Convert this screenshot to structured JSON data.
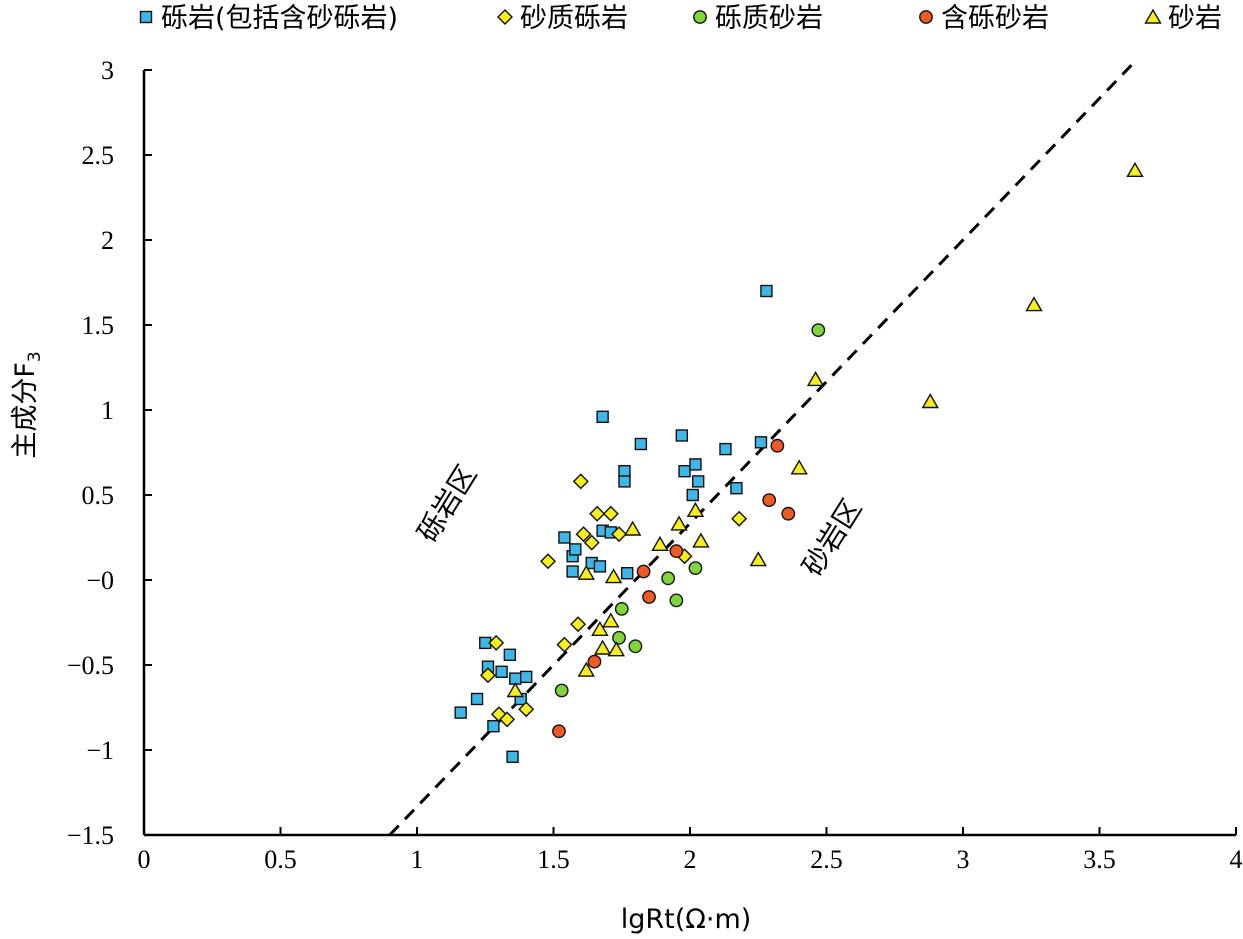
{
  "chart_data": {
    "type": "scatter",
    "xlabel": "lgRt(Ω·m)",
    "ylabel": "主成分F",
    "ylabel_sub": "3",
    "xlim": [
      0,
      4
    ],
    "ylim": [
      -1.5,
      3
    ],
    "xticks": [
      0,
      0.5,
      1,
      1.5,
      2,
      2.5,
      3,
      3.5,
      4
    ],
    "xtick_labels": [
      "0",
      "0.5",
      "1",
      "1.5",
      "2",
      "2.5",
      "3",
      "3.5",
      "4"
    ],
    "yticks": [
      -1.5,
      -1,
      -0.5,
      0,
      0.5,
      1,
      1.5,
      2,
      2.5,
      3
    ],
    "ytick_labels": [
      "−1.5",
      "−1",
      "−0.5",
      "−0",
      "0.5",
      "1",
      "1.5",
      "2",
      "2.5",
      "3"
    ],
    "grid": false,
    "legend_position": "top",
    "divider_line": {
      "x": [
        0.9,
        3.63
      ],
      "y": [
        -1.5,
        3.05
      ],
      "style": "dashed"
    },
    "zone_labels": [
      {
        "text": "砾岩区",
        "x": 1.14,
        "y": 0.42
      },
      {
        "text": "砂岩区",
        "x": 2.55,
        "y": 0.22
      }
    ],
    "series": [
      {
        "name": "砾岩(包括含砂砾岩)",
        "marker": "square",
        "color": "#3fb6e8",
        "points": [
          [
            1.16,
            -0.78
          ],
          [
            1.22,
            -0.7
          ],
          [
            1.25,
            -0.37
          ],
          [
            1.26,
            -0.51
          ],
          [
            1.28,
            -0.86
          ],
          [
            1.31,
            -0.54
          ],
          [
            1.34,
            -0.44
          ],
          [
            1.35,
            -1.04
          ],
          [
            1.36,
            -0.58
          ],
          [
            1.38,
            -0.7
          ],
          [
            1.4,
            -0.57
          ],
          [
            1.54,
            0.25
          ],
          [
            1.57,
            0.14
          ],
          [
            1.57,
            0.05
          ],
          [
            1.58,
            0.18
          ],
          [
            1.64,
            0.1
          ],
          [
            1.67,
            0.08
          ],
          [
            1.68,
            0.96
          ],
          [
            1.68,
            0.29
          ],
          [
            1.71,
            0.28
          ],
          [
            1.76,
            0.64
          ],
          [
            1.76,
            0.58
          ],
          [
            1.77,
            0.04
          ],
          [
            1.82,
            0.8
          ],
          [
            1.97,
            0.85
          ],
          [
            1.98,
            0.64
          ],
          [
            2.01,
            0.5
          ],
          [
            2.02,
            0.68
          ],
          [
            2.03,
            0.58
          ],
          [
            2.13,
            0.77
          ],
          [
            2.17,
            0.54
          ],
          [
            2.26,
            0.81
          ],
          [
            2.28,
            1.7
          ]
        ]
      },
      {
        "name": "砂质砾岩",
        "marker": "diamond",
        "color": "#f6ee1d",
        "points": [
          [
            1.26,
            -0.56
          ],
          [
            1.29,
            -0.37
          ],
          [
            1.3,
            -0.79
          ],
          [
            1.33,
            -0.82
          ],
          [
            1.4,
            -0.76
          ],
          [
            1.48,
            0.11
          ],
          [
            1.54,
            -0.38
          ],
          [
            1.59,
            -0.26
          ],
          [
            1.6,
            0.58
          ],
          [
            1.61,
            0.27
          ],
          [
            1.64,
            0.22
          ],
          [
            1.66,
            0.39
          ],
          [
            1.71,
            0.39
          ],
          [
            1.74,
            0.27
          ],
          [
            1.98,
            0.14
          ],
          [
            2.18,
            0.36
          ]
        ]
      },
      {
        "name": "砾质砂岩",
        "marker": "circle",
        "color": "#7fd63a",
        "points": [
          [
            1.53,
            -0.65
          ],
          [
            1.74,
            -0.34
          ],
          [
            1.75,
            -0.17
          ],
          [
            1.8,
            -0.39
          ],
          [
            1.92,
            0.01
          ],
          [
            1.95,
            -0.12
          ],
          [
            2.02,
            0.07
          ],
          [
            2.47,
            1.47
          ]
        ]
      },
      {
        "name": "含砾砂岩",
        "marker": "circle",
        "color": "#ee5a24",
        "points": [
          [
            1.52,
            -0.89
          ],
          [
            1.65,
            -0.48
          ],
          [
            1.83,
            0.05
          ],
          [
            1.85,
            -0.1
          ],
          [
            1.95,
            0.17
          ],
          [
            2.29,
            0.47
          ],
          [
            2.32,
            0.79
          ],
          [
            2.36,
            0.39
          ]
        ]
      },
      {
        "name": "砂岩",
        "marker": "triangle",
        "color": "#f6ee1d",
        "points": [
          [
            1.36,
            -0.65
          ],
          [
            1.62,
            0.04
          ],
          [
            1.62,
            -0.53
          ],
          [
            1.67,
            -0.29
          ],
          [
            1.68,
            -0.4
          ],
          [
            1.71,
            -0.24
          ],
          [
            1.72,
            0.02
          ],
          [
            1.73,
            -0.41
          ],
          [
            1.79,
            0.3
          ],
          [
            1.89,
            0.21
          ],
          [
            1.96,
            0.33
          ],
          [
            2.02,
            0.41
          ],
          [
            2.04,
            0.23
          ],
          [
            2.25,
            0.12
          ],
          [
            2.4,
            0.66
          ],
          [
            2.46,
            1.18
          ],
          [
            2.88,
            1.05
          ],
          [
            3.26,
            1.62
          ],
          [
            3.63,
            2.41
          ]
        ]
      }
    ]
  }
}
